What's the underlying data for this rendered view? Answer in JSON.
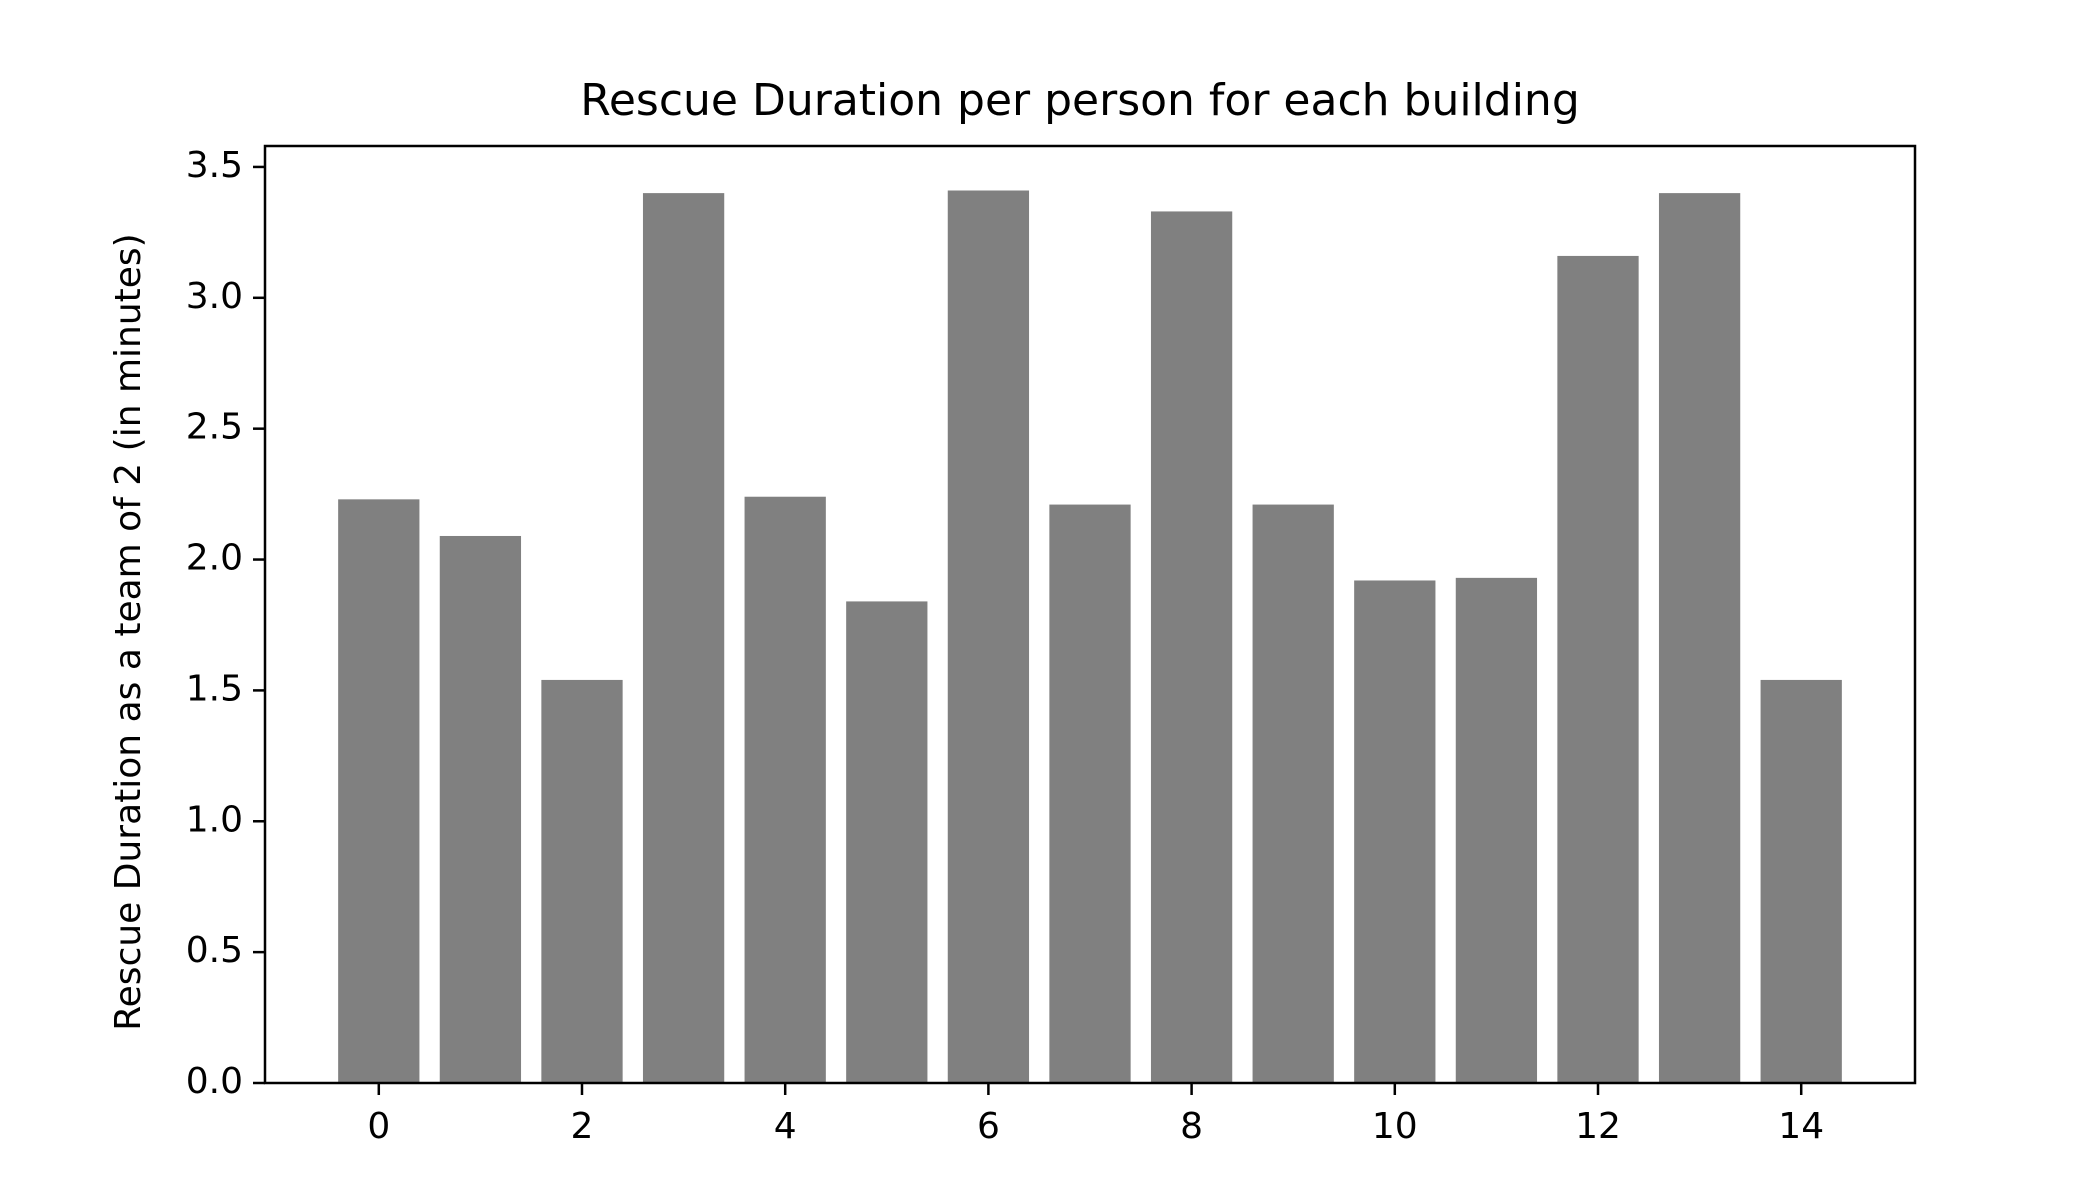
{
  "chart_data": {
    "type": "bar",
    "title": "Rescue Duration per person for each building",
    "xlabel": "",
    "ylabel": "Rescue Duration as a team of 2 (in minutes)",
    "categories": [
      0,
      1,
      2,
      3,
      4,
      5,
      6,
      7,
      8,
      9,
      10,
      11,
      12,
      13,
      14
    ],
    "values": [
      2.23,
      2.09,
      1.54,
      3.4,
      2.24,
      1.84,
      3.41,
      2.21,
      3.33,
      2.21,
      1.92,
      1.93,
      3.16,
      3.4,
      1.54
    ],
    "xlim": [
      -1.12,
      15.12
    ],
    "ylim": [
      0,
      3.58
    ],
    "xticks": [
      0,
      2,
      4,
      6,
      8,
      10,
      12,
      14
    ],
    "xtick_labels": [
      "0",
      "2",
      "4",
      "6",
      "8",
      "10",
      "12",
      "14"
    ],
    "yticks": [
      0.0,
      0.5,
      1.0,
      1.5,
      2.0,
      2.5,
      3.0,
      3.5
    ],
    "ytick_labels": [
      "0.0",
      "0.5",
      "1.0",
      "1.5",
      "2.0",
      "2.5",
      "3.0",
      "3.5"
    ],
    "bar_color": "#808080",
    "grid": false,
    "legend": "none"
  }
}
